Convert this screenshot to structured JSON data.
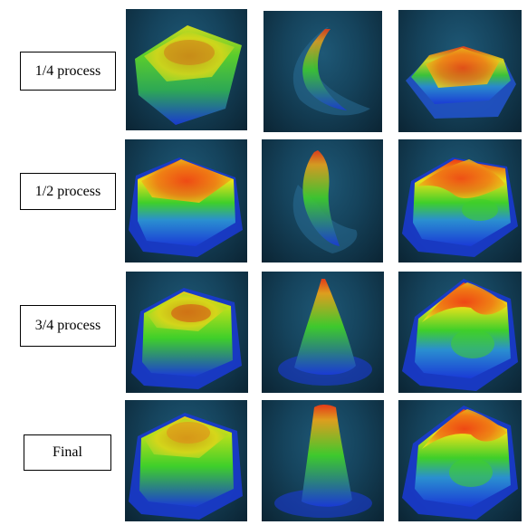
{
  "rows": [
    {
      "label": "1/4 process"
    },
    {
      "label": "1/2 process"
    },
    {
      "label": "3/4 process"
    },
    {
      "label": "Final"
    }
  ],
  "colors": {
    "background": "#15435c",
    "low": "#1a3ad6",
    "mid": "#3fcf2a",
    "high_mid": "#e8e21a",
    "high": "#ef3a14"
  }
}
